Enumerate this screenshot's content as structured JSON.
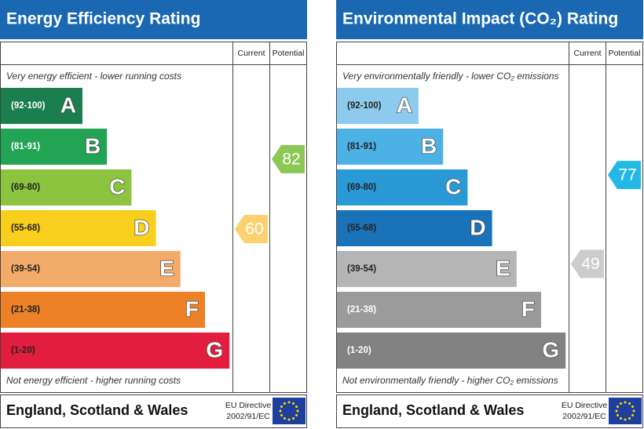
{
  "chart_data": [
    {
      "type": "rating",
      "title": "Energy Efficiency Rating",
      "columns": [
        "Current",
        "Potential"
      ],
      "top_note": "Very energy efficient - lower running costs",
      "bottom_note": "Not energy efficient - higher running costs",
      "bands": [
        {
          "range": "(92-100)",
          "letter": "A",
          "color": "#1b7e4f",
          "text_color": "#ffffff"
        },
        {
          "range": "(81-91)",
          "letter": "B",
          "color": "#23a354",
          "text_color": "#ffffff"
        },
        {
          "range": "(69-80)",
          "letter": "C",
          "color": "#8cc43f",
          "text_color": "#222222"
        },
        {
          "range": "(55-68)",
          "letter": "D",
          "color": "#f8cf1c",
          "text_color": "#222222"
        },
        {
          "range": "(39-54)",
          "letter": "E",
          "color": "#f3ab6a",
          "text_color": "#222222"
        },
        {
          "range": "(21-38)",
          "letter": "F",
          "color": "#ec8128",
          "text_color": "#222222"
        },
        {
          "range": "(1-20)",
          "letter": "G",
          "color": "#e31d3d",
          "text_color": "#222222"
        }
      ],
      "current": {
        "value": 60,
        "color": "#fcd16f"
      },
      "potential": {
        "value": 82,
        "color": "#8dc756"
      },
      "footer": "England, Scotland & Wales",
      "directive": [
        "EU Directive",
        "2002/91/EC"
      ]
    },
    {
      "type": "rating",
      "title": "Environmental Impact (CO₂) Rating",
      "columns": [
        "Current",
        "Potential"
      ],
      "top_note": "Very environmentally friendly - lower CO₂ emissions",
      "bottom_note": "Not environmentally friendly - higher CO₂ emissions",
      "bands": [
        {
          "range": "(92-100)",
          "letter": "A",
          "color": "#8dcbee",
          "text_color": "#222222"
        },
        {
          "range": "(81-91)",
          "letter": "B",
          "color": "#4cb1e4",
          "text_color": "#222222"
        },
        {
          "range": "(69-80)",
          "letter": "C",
          "color": "#2a9ad6",
          "text_color": "#222222"
        },
        {
          "range": "(55-68)",
          "letter": "D",
          "color": "#1a72b8",
          "text_color": "#222222"
        },
        {
          "range": "(39-54)",
          "letter": "E",
          "color": "#b5b5b5",
          "text_color": "#222222"
        },
        {
          "range": "(21-38)",
          "letter": "F",
          "color": "#9b9b9b",
          "text_color": "#ffffff"
        },
        {
          "range": "(1-20)",
          "letter": "G",
          "color": "#828282",
          "text_color": "#ffffff"
        }
      ],
      "current": {
        "value": 49,
        "color": "#cccccc"
      },
      "potential": {
        "value": 77,
        "color": "#23b8e6"
      },
      "footer": "England, Scotland & Wales",
      "directive": [
        "EU Directive",
        "2002/91/EC"
      ]
    }
  ]
}
